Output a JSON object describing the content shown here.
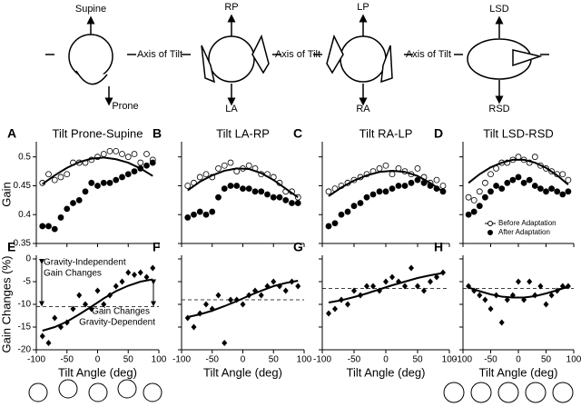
{
  "diagrams": [
    {
      "up": "Supine",
      "down": "Prone",
      "axis": "Axis of Tilt"
    },
    {
      "up": "RP",
      "down": "LA",
      "axis": "Axis of Tilt"
    },
    {
      "up": "LP",
      "down": "RA",
      "axis": "Axis of Tilt"
    },
    {
      "up": "LSD",
      "down": "RSD"
    }
  ],
  "chart_data": [
    {
      "type": "scatter",
      "panel": "A",
      "title": "Tilt Prone-Supine",
      "ylabel": "Gain",
      "xlim": [
        -100,
        100
      ],
      "ylim": [
        0.35,
        0.52
      ],
      "xticks": [
        -100,
        -50,
        0,
        50,
        100
      ],
      "yticks": [
        0.35,
        0.4,
        0.45,
        0.5
      ],
      "xtick_labels": false,
      "ytick_labels": true,
      "series": [
        {
          "marker": "open-circle",
          "color": "#000",
          "x": [
            -90,
            -80,
            -70,
            -60,
            -50,
            -40,
            -30,
            -20,
            -10,
            0,
            10,
            20,
            30,
            40,
            50,
            60,
            70,
            80,
            90
          ],
          "values": [
            0.455,
            0.47,
            0.46,
            0.465,
            0.47,
            0.49,
            0.49,
            0.49,
            0.495,
            0.5,
            0.505,
            0.51,
            0.51,
            0.505,
            0.5,
            0.505,
            0.49,
            0.505,
            0.495
          ]
        },
        {
          "marker": "filled-circle",
          "color": "#000",
          "x": [
            -90,
            -80,
            -70,
            -60,
            -50,
            -40,
            -30,
            -20,
            -10,
            0,
            10,
            20,
            30,
            40,
            50,
            60,
            70,
            80,
            90
          ],
          "values": [
            0.38,
            0.38,
            0.375,
            0.395,
            0.41,
            0.42,
            0.425,
            0.44,
            0.455,
            0.45,
            0.455,
            0.455,
            0.46,
            0.465,
            0.47,
            0.475,
            0.48,
            0.485,
            0.49
          ]
        },
        {
          "marker": "line",
          "color": "#000",
          "x": [
            -90,
            -70,
            -50,
            -30,
            -10,
            10,
            30,
            50,
            70,
            90
          ],
          "values": [
            0.453,
            0.468,
            0.481,
            0.491,
            0.497,
            0.499,
            0.496,
            0.49,
            0.48,
            0.467
          ]
        }
      ]
    },
    {
      "type": "scatter",
      "panel": "B",
      "title": "Tilt LA-RP",
      "xlim": [
        -100,
        100
      ],
      "ylim": [
        0.35,
        0.52
      ],
      "xticks": [
        -100,
        -50,
        0,
        50,
        100
      ],
      "yticks": [
        0.35,
        0.4,
        0.45,
        0.5
      ],
      "xtick_labels": false,
      "ytick_labels": false,
      "series": [
        {
          "marker": "open-circle",
          "color": "#000",
          "x": [
            -90,
            -80,
            -70,
            -60,
            -50,
            -40,
            -30,
            -20,
            -10,
            0,
            10,
            20,
            30,
            40,
            50,
            60,
            70,
            80,
            90
          ],
          "values": [
            0.45,
            0.455,
            0.465,
            0.47,
            0.465,
            0.48,
            0.485,
            0.49,
            0.475,
            0.48,
            0.485,
            0.48,
            0.47,
            0.47,
            0.465,
            0.455,
            0.44,
            0.44,
            0.43
          ]
        },
        {
          "marker": "filled-circle",
          "color": "#000",
          "x": [
            -90,
            -80,
            -70,
            -60,
            -50,
            -40,
            -30,
            -20,
            -10,
            0,
            10,
            20,
            30,
            40,
            50,
            60,
            70,
            80,
            90
          ],
          "values": [
            0.395,
            0.4,
            0.405,
            0.4,
            0.405,
            0.43,
            0.445,
            0.45,
            0.45,
            0.445,
            0.445,
            0.44,
            0.44,
            0.435,
            0.43,
            0.43,
            0.425,
            0.42,
            0.42
          ]
        },
        {
          "marker": "line",
          "color": "#000",
          "x": [
            -90,
            -70,
            -50,
            -30,
            -10,
            10,
            30,
            50,
            70,
            90
          ],
          "values": [
            0.442,
            0.457,
            0.468,
            0.476,
            0.48,
            0.479,
            0.472,
            0.46,
            0.445,
            0.43
          ]
        }
      ]
    },
    {
      "type": "scatter",
      "panel": "C",
      "title": "Tilt RA-LP",
      "xlim": [
        -100,
        100
      ],
      "ylim": [
        0.35,
        0.52
      ],
      "xticks": [
        -100,
        -50,
        0,
        50,
        100
      ],
      "yticks": [
        0.35,
        0.4,
        0.45,
        0.5
      ],
      "xtick_labels": false,
      "ytick_labels": false,
      "series": [
        {
          "marker": "open-circle",
          "color": "#000",
          "x": [
            -90,
            -80,
            -70,
            -60,
            -50,
            -40,
            -30,
            -20,
            -10,
            0,
            10,
            20,
            30,
            40,
            50,
            60,
            70,
            80,
            90
          ],
          "values": [
            0.44,
            0.445,
            0.45,
            0.455,
            0.46,
            0.465,
            0.47,
            0.475,
            0.48,
            0.485,
            0.47,
            0.48,
            0.475,
            0.47,
            0.48,
            0.465,
            0.455,
            0.46,
            0.45
          ]
        },
        {
          "marker": "filled-circle",
          "color": "#000",
          "x": [
            -90,
            -80,
            -70,
            -60,
            -50,
            -40,
            -30,
            -20,
            -10,
            0,
            10,
            20,
            30,
            40,
            50,
            60,
            70,
            80,
            90
          ],
          "values": [
            0.38,
            0.385,
            0.4,
            0.405,
            0.415,
            0.42,
            0.43,
            0.435,
            0.44,
            0.44,
            0.445,
            0.45,
            0.45,
            0.455,
            0.46,
            0.455,
            0.45,
            0.445,
            0.44
          ]
        },
        {
          "marker": "line",
          "color": "#000",
          "x": [
            -90,
            -70,
            -50,
            -30,
            -10,
            10,
            30,
            50,
            70,
            90
          ],
          "values": [
            0.432,
            0.447,
            0.459,
            0.468,
            0.474,
            0.476,
            0.474,
            0.467,
            0.455,
            0.44
          ]
        }
      ]
    },
    {
      "type": "scatter",
      "panel": "D",
      "title": "Tilt LSD-RSD",
      "xlim": [
        -100,
        100
      ],
      "ylim": [
        0.35,
        0.52
      ],
      "xticks": [
        -100,
        -50,
        0,
        50,
        100
      ],
      "yticks": [
        0.35,
        0.4,
        0.45,
        0.5
      ],
      "xtick_labels": false,
      "ytick_labels": false,
      "legend": "lower right",
      "series": [
        {
          "name": "Before Adaptation",
          "marker": "open-circle",
          "color": "#000",
          "x": [
            -90,
            -80,
            -70,
            -60,
            -50,
            -40,
            -30,
            -20,
            -10,
            0,
            10,
            20,
            30,
            40,
            50,
            60,
            70,
            80,
            90
          ],
          "values": [
            0.43,
            0.425,
            0.44,
            0.455,
            0.47,
            0.48,
            0.49,
            0.49,
            0.495,
            0.5,
            0.495,
            0.49,
            0.5,
            0.485,
            0.48,
            0.475,
            0.47,
            0.47,
            0.46
          ]
        },
        {
          "name": "After Adaptation",
          "marker": "filled-circle",
          "color": "#000",
          "x": [
            -90,
            -80,
            -70,
            -60,
            -50,
            -40,
            -30,
            -20,
            -10,
            0,
            10,
            20,
            30,
            40,
            50,
            60,
            70,
            80,
            90
          ],
          "values": [
            0.4,
            0.405,
            0.415,
            0.43,
            0.44,
            0.45,
            0.445,
            0.455,
            0.46,
            0.465,
            0.455,
            0.46,
            0.45,
            0.445,
            0.44,
            0.445,
            0.44,
            0.435,
            0.44
          ]
        },
        {
          "marker": "line",
          "color": "#000",
          "x": [
            -90,
            -70,
            -50,
            -30,
            -10,
            10,
            30,
            50,
            70,
            90
          ],
          "values": [
            0.455,
            0.47,
            0.482,
            0.49,
            0.495,
            0.495,
            0.49,
            0.481,
            0.468,
            0.452
          ]
        }
      ]
    },
    {
      "type": "scatter",
      "panel": "E",
      "ylabel": "Gain Changes (%)",
      "xlabel": "Tilt Angle (deg)",
      "xlim": [
        -100,
        100
      ],
      "ylim": [
        -20,
        0
      ],
      "xticks": [
        -100,
        -50,
        0,
        50,
        100
      ],
      "yticks": [
        0,
        -5,
        -10,
        -15,
        -20
      ],
      "xtick_labels": true,
      "ytick_labels": true,
      "reference_line": -10.5,
      "annotations": [
        "Gravity-Independent",
        "Gain Changes",
        "Gain Changes",
        "Gravity-Dependent"
      ],
      "series": [
        {
          "marker": "diamond",
          "color": "#000",
          "x": [
            -90,
            -80,
            -70,
            -60,
            -50,
            -40,
            -30,
            -20,
            -10,
            0,
            10,
            20,
            30,
            40,
            50,
            60,
            70,
            80,
            90
          ],
          "values": [
            -17,
            -18.5,
            -13,
            -15,
            -14,
            -11,
            -8,
            -10,
            -11,
            -7,
            -10,
            -8,
            -6,
            -5,
            -3,
            -3.5,
            -3,
            -4,
            -2
          ]
        },
        {
          "marker": "line",
          "color": "#000",
          "x": [
            -90,
            -70,
            -50,
            -30,
            -10,
            10,
            30,
            50,
            70,
            90
          ],
          "values": [
            -15.8,
            -15,
            -13.8,
            -12.2,
            -10.5,
            -8.7,
            -7.1,
            -5.9,
            -5,
            -4.5
          ]
        }
      ]
    },
    {
      "type": "scatter",
      "panel": "F",
      "xlabel": "Tilt Angle (deg)",
      "xlim": [
        -100,
        100
      ],
      "ylim": [
        -20,
        0
      ],
      "xticks": [
        -100,
        -50,
        0,
        50,
        100
      ],
      "yticks": [
        0,
        -5,
        -10,
        -15,
        -20
      ],
      "xtick_labels": true,
      "ytick_labels": false,
      "reference_line": -9,
      "series": [
        {
          "marker": "diamond",
          "color": "#000",
          "x": [
            -90,
            -80,
            -70,
            -60,
            -50,
            -40,
            -30,
            -20,
            -10,
            0,
            10,
            20,
            30,
            40,
            50,
            60,
            70,
            80,
            90
          ],
          "values": [
            -13,
            -15,
            -12,
            -10,
            -11,
            -8,
            -18.5,
            -9,
            -9,
            -10,
            -8,
            -7,
            -8,
            -6,
            -5,
            -6,
            -7,
            -5,
            -6
          ]
        },
        {
          "marker": "line",
          "color": "#000",
          "x": [
            -90,
            -70,
            -50,
            -30,
            -10,
            10,
            30,
            50,
            70,
            90
          ],
          "values": [
            -12.8,
            -12.2,
            -11.4,
            -10.4,
            -9.3,
            -8.1,
            -7,
            -6,
            -5.3,
            -4.8
          ]
        }
      ]
    },
    {
      "type": "scatter",
      "panel": "G",
      "xlabel": "Tilt Angle (deg)",
      "xlim": [
        -100,
        100
      ],
      "ylim": [
        -20,
        0
      ],
      "xticks": [
        -100,
        -50,
        0,
        50,
        100
      ],
      "yticks": [
        0,
        -5,
        -10,
        -15,
        -20
      ],
      "xtick_labels": true,
      "ytick_labels": false,
      "reference_line": -6.5,
      "series": [
        {
          "marker": "diamond",
          "color": "#000",
          "x": [
            -90,
            -80,
            -70,
            -60,
            -50,
            -40,
            -30,
            -20,
            -10,
            0,
            10,
            20,
            30,
            40,
            50,
            60,
            70,
            80,
            90
          ],
          "values": [
            -12,
            -11,
            -9,
            -10,
            -7,
            -8,
            -6,
            -6,
            -7,
            -5,
            -4,
            -5,
            -6,
            -2,
            -6,
            -7,
            -5,
            -4,
            -3
          ]
        },
        {
          "marker": "line",
          "color": "#000",
          "x": [
            -90,
            -70,
            -50,
            -30,
            -10,
            10,
            30,
            50,
            70,
            90
          ],
          "values": [
            -9.6,
            -9.1,
            -8.4,
            -7.6,
            -6.7,
            -5.8,
            -5,
            -4.2,
            -3.6,
            -3.1
          ]
        }
      ]
    },
    {
      "type": "scatter",
      "panel": "H",
      "xlabel": "Tilt Angle (deg)",
      "xlim": [
        -100,
        100
      ],
      "ylim": [
        -20,
        0
      ],
      "xticks": [
        -100,
        -50,
        0,
        50,
        100
      ],
      "yticks": [
        0,
        -5,
        -10,
        -15,
        -20
      ],
      "xtick_labels": true,
      "ytick_labels": false,
      "reference_line": -6.5,
      "series": [
        {
          "marker": "diamond",
          "color": "#000",
          "x": [
            -90,
            -80,
            -70,
            -60,
            -50,
            -40,
            -30,
            -20,
            -10,
            0,
            10,
            20,
            30,
            40,
            50,
            60,
            70,
            80,
            90
          ],
          "values": [
            -6,
            -7,
            -8,
            -9,
            -11,
            -8,
            -14,
            -9,
            -8,
            -5,
            -9,
            -5,
            -8,
            -6,
            -10,
            -8,
            -7,
            -6,
            -6
          ]
        },
        {
          "marker": "line",
          "color": "#000",
          "x": [
            -90,
            -70,
            -50,
            -30,
            -10,
            10,
            30,
            50,
            70,
            90
          ],
          "values": [
            -6.3,
            -7.1,
            -7.8,
            -8.3,
            -8.5,
            -8.5,
            -8.2,
            -7.6,
            -6.9,
            -6.1
          ]
        }
      ]
    }
  ]
}
